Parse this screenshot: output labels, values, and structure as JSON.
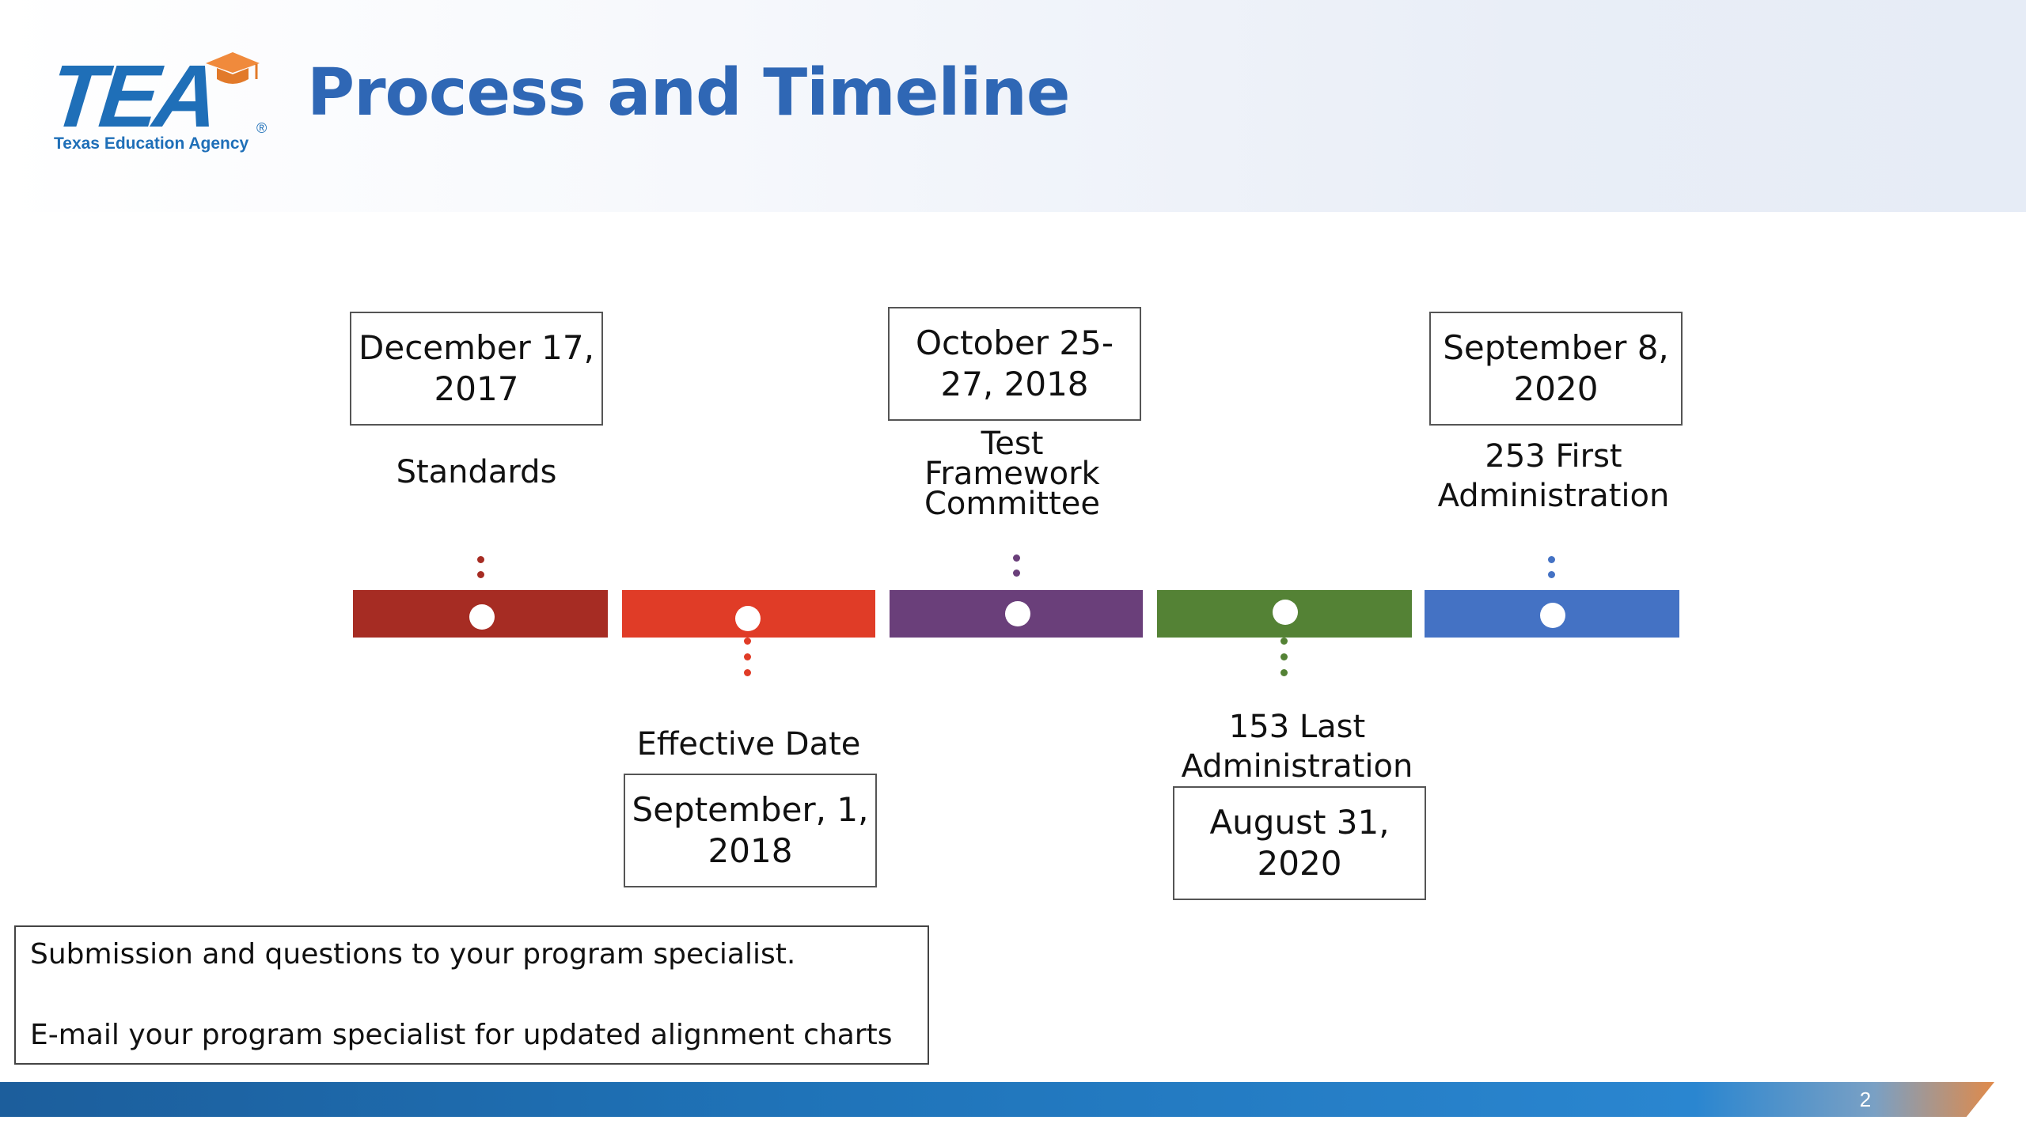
{
  "header": {
    "title": "Process and Timeline",
    "logo": {
      "wordmark": "TEA",
      "subtitle": "Texas Education Agency",
      "registered_mark": "®",
      "color": "#1f6fb8",
      "accent_color": "#f08a3c"
    }
  },
  "timeline": {
    "milestones": [
      {
        "date": "December 17,\n2017",
        "label": "Standards",
        "color": "#a62c23",
        "position": "above"
      },
      {
        "date": "September, 1,\n2018",
        "label": "Effective Date",
        "color": "#e03c27",
        "position": "below"
      },
      {
        "date": "October 25-\n27, 2018",
        "label": "Test\nFramework\nCommittee",
        "color": "#6a3f7a",
        "position": "above"
      },
      {
        "date": "August 31,\n2020",
        "label": "153 Last\nAdministration",
        "color": "#548235",
        "position": "below"
      },
      {
        "date": "September 8,\n2020",
        "label": "253 First\nAdministration",
        "color": "#4472c4",
        "position": "above"
      }
    ]
  },
  "note": {
    "line1": "Submission and questions to your program specialist.",
    "line2": "E-mail your program specialist for updated alignment charts"
  },
  "footer": {
    "page_number": "2"
  }
}
